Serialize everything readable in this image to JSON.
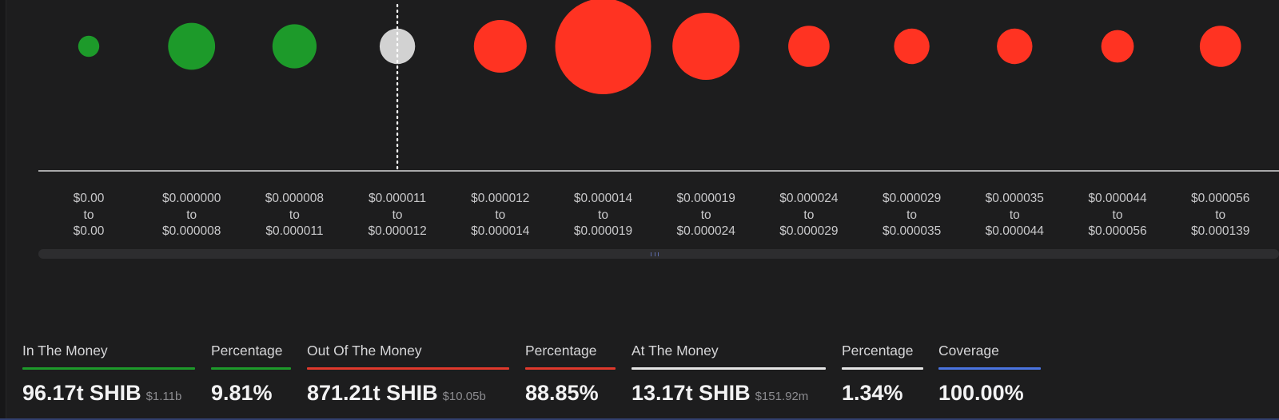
{
  "chart_data": {
    "type": "bubble",
    "title": "",
    "colors": {
      "in_the_money": "#1d9a2a",
      "at_the_money": "#d2d2d2",
      "out_of_the_money": "#ff3322",
      "axis": "#d8d8d8",
      "background": "#1d1d1e"
    },
    "buckets": [
      {
        "range_from": "$0.00",
        "to": "to",
        "range_to": "$0.00",
        "status": "in",
        "relative_size": 0.22
      },
      {
        "range_from": "$0.000000",
        "to": "to",
        "range_to": "$0.000008",
        "status": "in",
        "relative_size": 0.49
      },
      {
        "range_from": "$0.000008",
        "to": "to",
        "range_to": "$0.000011",
        "status": "in",
        "relative_size": 0.46
      },
      {
        "range_from": "$0.000011",
        "to": "to",
        "range_to": "$0.000012",
        "status": "at",
        "relative_size": 0.37
      },
      {
        "range_from": "$0.000012",
        "to": "to",
        "range_to": "$0.000014",
        "status": "out",
        "relative_size": 0.55
      },
      {
        "range_from": "$0.000014",
        "to": "to",
        "range_to": "$0.000019",
        "status": "out",
        "relative_size": 1.0
      },
      {
        "range_from": "$0.000019",
        "to": "to",
        "range_to": "$0.000024",
        "status": "out",
        "relative_size": 0.7
      },
      {
        "range_from": "$0.000024",
        "to": "to",
        "range_to": "$0.000029",
        "status": "out",
        "relative_size": 0.43
      },
      {
        "range_from": "$0.000029",
        "to": "to",
        "range_to": "$0.000035",
        "status": "out",
        "relative_size": 0.37
      },
      {
        "range_from": "$0.000035",
        "to": "to",
        "range_to": "$0.000044",
        "status": "out",
        "relative_size": 0.37
      },
      {
        "range_from": "$0.000044",
        "to": "to",
        "range_to": "$0.000056",
        "status": "out",
        "relative_size": 0.34
      },
      {
        "range_from": "$0.000056",
        "to": "to",
        "range_to": "$0.000139",
        "status": "out",
        "relative_size": 0.43
      }
    ],
    "current_price_bucket_index": 3
  },
  "summary": [
    {
      "id": "in-the-money",
      "label": "In The Money",
      "value": "96.17t SHIB",
      "usd": "$1.11b",
      "color": "#1d9a2a"
    },
    {
      "id": "in-percentage",
      "label": "Percentage",
      "value": "9.81%",
      "usd": "",
      "color": "#1d9a2a"
    },
    {
      "id": "out-of-the-money",
      "label": "Out Of The Money",
      "value": "871.21t SHIB",
      "usd": "$10.05b",
      "color": "#e0392c"
    },
    {
      "id": "out-percentage",
      "label": "Percentage",
      "value": "88.85%",
      "usd": "",
      "color": "#e0392c"
    },
    {
      "id": "at-the-money",
      "label": "At The Money",
      "value": "13.17t SHIB",
      "usd": "$151.92m",
      "color": "#e6e6e6"
    },
    {
      "id": "at-percentage",
      "label": "Percentage",
      "value": "1.34%",
      "usd": "",
      "color": "#e6e6e6"
    },
    {
      "id": "coverage",
      "label": "Coverage",
      "value": "100.00%",
      "usd": "",
      "color": "#4a74e0"
    }
  ]
}
